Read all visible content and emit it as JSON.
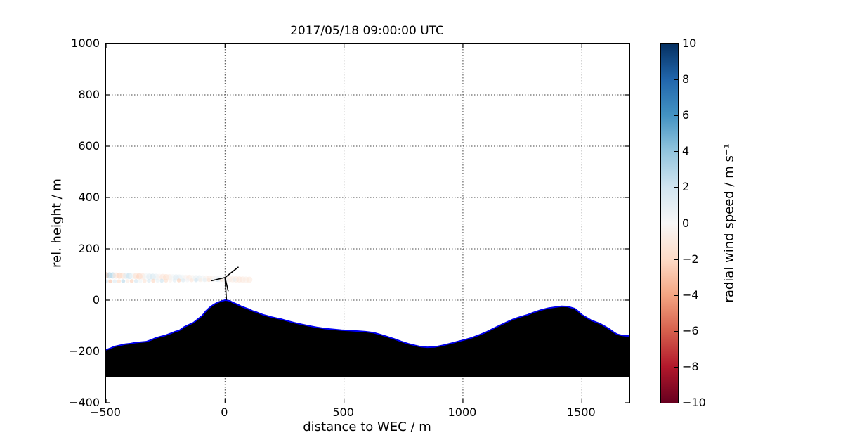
{
  "figure": {
    "background": "#ffffff"
  },
  "chart_data": {
    "type": "scatter",
    "title": "2017/05/18 09:00:00 UTC",
    "xlabel": "distance to WEC / m",
    "ylabel": "rel. height / m",
    "xlim": [
      -500,
      1700
    ],
    "ylim": [
      -400,
      1000
    ],
    "grid": {
      "on": true,
      "style": "dotted",
      "color": "#444444"
    },
    "xticks": {
      "values": [
        -500,
        0,
        500,
        1000,
        1500
      ],
      "labels": [
        "−500",
        "0",
        "500",
        "1000",
        "1500"
      ]
    },
    "yticks": {
      "values": [
        1000,
        800,
        600,
        400,
        200,
        0,
        -200,
        -400
      ],
      "labels": [
        "1000",
        "800",
        "600",
        "400",
        "200",
        "0",
        "−200",
        "−400"
      ]
    },
    "terrain": {
      "fill_color": "#000000",
      "line_color": "#0000ee",
      "line_width": 2,
      "base_height": -300,
      "points": [
        [
          -500,
          -194
        ],
        [
          -480,
          -187
        ],
        [
          -465,
          -181
        ],
        [
          -440,
          -176
        ],
        [
          -420,
          -172
        ],
        [
          -400,
          -170
        ],
        [
          -378,
          -166
        ],
        [
          -355,
          -164
        ],
        [
          -331,
          -162
        ],
        [
          -310,
          -155
        ],
        [
          -290,
          -147
        ],
        [
          -270,
          -142
        ],
        [
          -252,
          -138
        ],
        [
          -232,
          -131
        ],
        [
          -213,
          -124
        ],
        [
          -192,
          -118
        ],
        [
          -172,
          -105
        ],
        [
          -152,
          -96
        ],
        [
          -133,
          -88
        ],
        [
          -114,
          -74
        ],
        [
          -95,
          -60
        ],
        [
          -80,
          -42
        ],
        [
          -66,
          -30
        ],
        [
          -55,
          -22
        ],
        [
          -45,
          -16
        ],
        [
          -35,
          -11
        ],
        [
          -25,
          -7
        ],
        [
          -15,
          -4
        ],
        [
          0,
          0
        ],
        [
          10,
          -1
        ],
        [
          20,
          -3
        ],
        [
          30,
          -8
        ],
        [
          40,
          -12
        ],
        [
          55,
          -18
        ],
        [
          70,
          -25
        ],
        [
          85,
          -30
        ],
        [
          100,
          -35
        ],
        [
          115,
          -42
        ],
        [
          130,
          -46
        ],
        [
          145,
          -52
        ],
        [
          160,
          -57
        ],
        [
          180,
          -62
        ],
        [
          195,
          -66
        ],
        [
          215,
          -70
        ],
        [
          235,
          -74
        ],
        [
          262,
          -81
        ],
        [
          290,
          -88
        ],
        [
          320,
          -94
        ],
        [
          350,
          -100
        ],
        [
          385,
          -106
        ],
        [
          420,
          -111
        ],
        [
          455,
          -114
        ],
        [
          490,
          -117
        ],
        [
          525,
          -119
        ],
        [
          560,
          -121
        ],
        [
          590,
          -123
        ],
        [
          625,
          -127
        ],
        [
          652,
          -134
        ],
        [
          680,
          -142
        ],
        [
          710,
          -151
        ],
        [
          740,
          -161
        ],
        [
          770,
          -170
        ],
        [
          800,
          -177
        ],
        [
          825,
          -182
        ],
        [
          850,
          -184
        ],
        [
          880,
          -183
        ],
        [
          918,
          -176
        ],
        [
          948,
          -169
        ],
        [
          977,
          -162
        ],
        [
          1006,
          -155
        ],
        [
          1036,
          -147
        ],
        [
          1065,
          -137
        ],
        [
          1095,
          -126
        ],
        [
          1125,
          -112
        ],
        [
          1154,
          -99
        ],
        [
          1184,
          -86
        ],
        [
          1213,
          -74
        ],
        [
          1243,
          -65
        ],
        [
          1272,
          -57
        ],
        [
          1300,
          -47
        ],
        [
          1330,
          -38
        ],
        [
          1360,
          -31
        ],
        [
          1390,
          -27
        ],
        [
          1415,
          -24
        ],
        [
          1440,
          -25
        ],
        [
          1470,
          -33
        ],
        [
          1485,
          -44
        ],
        [
          1500,
          -57
        ],
        [
          1520,
          -68
        ],
        [
          1540,
          -79
        ],
        [
          1560,
          -86
        ],
        [
          1577,
          -92
        ],
        [
          1598,
          -103
        ],
        [
          1618,
          -114
        ],
        [
          1632,
          -124
        ],
        [
          1648,
          -133
        ],
        [
          1665,
          -137
        ],
        [
          1680,
          -139
        ],
        [
          1700,
          -140
        ]
      ]
    },
    "turbine": {
      "color": "#000000",
      "line_width": 1.6,
      "hub": [
        0,
        88
      ],
      "tower": [
        [
          6,
          0
        ],
        [
          0,
          88
        ]
      ],
      "blades": [
        [
          [
            0,
            88
          ],
          [
            55,
            128
          ]
        ],
        [
          [
            0,
            88
          ],
          [
            -55,
            76
          ]
        ],
        [
          [
            0,
            88
          ],
          [
            13,
            36
          ]
        ]
      ]
    },
    "scan_series": [
      {
        "name": "upper-beam",
        "radius": 4.5,
        "alpha": 0.5,
        "x": [
          -500,
          -486,
          -472,
          -458,
          -444,
          -430,
          -416,
          -402,
          -388,
          -374,
          -360,
          -346,
          -332,
          -318,
          -304,
          -290,
          -276,
          -262,
          -248,
          -234,
          -220,
          -206,
          -192,
          -178,
          -164,
          -150,
          -136,
          -122,
          -108,
          -94,
          -80,
          -66,
          -52,
          -38,
          -24,
          -10,
          4,
          18,
          32,
          46,
          60,
          74,
          88,
          102
        ],
        "y": [
          97,
          96.6,
          96.2,
          95.7,
          95.3,
          94.9,
          94.5,
          94.1,
          93.6,
          93.2,
          92.8,
          92.4,
          92,
          91.5,
          91.1,
          90.7,
          90.3,
          89.9,
          89.4,
          89,
          88.6,
          88.2,
          87.8,
          87.3,
          86.9,
          86.5,
          86.1,
          85.7,
          85.2,
          84.8,
          84.4,
          84,
          83.6,
          83.1,
          82.7,
          82.3,
          81.9,
          81.5,
          81.2,
          80.9,
          80.5,
          80.2,
          79.8,
          79.5
        ],
        "v": [
          -3.5,
          3.5,
          3,
          -1.5,
          -2.5,
          -2,
          1.5,
          2.5,
          0.5,
          -2,
          -2.5,
          -1.5,
          0.5,
          1.5,
          2,
          1,
          -0.5,
          -1.5,
          -2,
          -1,
          0.5,
          1.5,
          1.2,
          0.5,
          -0.5,
          -1.2,
          -0.3,
          0.8,
          1,
          0.4,
          -0.6,
          -1,
          -0.6,
          0.3,
          0.6,
          0.2,
          -0.4,
          -0.8,
          -1,
          -1.2,
          -1.4,
          -1.2,
          -1,
          -1.3
        ]
      },
      {
        "name": "lower-beam",
        "radius": 2.8,
        "alpha": 0.6,
        "x": [
          -500,
          -482,
          -464,
          -446,
          -428,
          -410,
          -392,
          -374,
          -356,
          -338,
          -320,
          -302,
          -284,
          -266,
          -248,
          -230,
          -212,
          -194,
          -176,
          -158,
          -140,
          -122,
          -104,
          -86,
          -68,
          -50,
          -32,
          -14,
          4,
          22,
          40
        ],
        "y": [
          73,
          73.2,
          73.4,
          73.6,
          73.9,
          74.1,
          74.3,
          74.5,
          74.7,
          74.9,
          75.2,
          75.4,
          75.6,
          75.8,
          76,
          76.2,
          76.5,
          76.7,
          76.9,
          77.1,
          77.3,
          77.5,
          77.8,
          78,
          78.2,
          78.4,
          78.6,
          78.8,
          79.1,
          79.3,
          79.5
        ],
        "v": [
          2.5,
          -3,
          1.5,
          -2,
          3,
          -1,
          -2.5,
          2,
          0.5,
          -1.5,
          1.8,
          -2.2,
          0.8,
          2.2,
          -1.8,
          -0.5,
          1.2,
          -2.5,
          1.5,
          0.3,
          -1.2,
          2,
          -0.8,
          1,
          -1.5,
          0.5,
          1.5,
          -1,
          0.4,
          -0.6,
          0.8
        ]
      }
    ],
    "colorbar": {
      "label": "radial wind speed / m s⁻¹",
      "vmin": -10,
      "vmax": 10,
      "ticks": {
        "values": [
          10,
          8,
          6,
          4,
          2,
          0,
          -2,
          -4,
          -6,
          -8,
          -10
        ],
        "labels": [
          "10",
          "8",
          "6",
          "4",
          "2",
          "0",
          "−2",
          "−4",
          "−6",
          "−8",
          "−10"
        ]
      },
      "colormap_top_to_bottom": [
        "#053061",
        "#2166ac",
        "#4393c3",
        "#92c5de",
        "#d1e5f0",
        "#f7f7f7",
        "#fddbc7",
        "#f4a582",
        "#d6604d",
        "#b2182b",
        "#67001f"
      ]
    }
  }
}
